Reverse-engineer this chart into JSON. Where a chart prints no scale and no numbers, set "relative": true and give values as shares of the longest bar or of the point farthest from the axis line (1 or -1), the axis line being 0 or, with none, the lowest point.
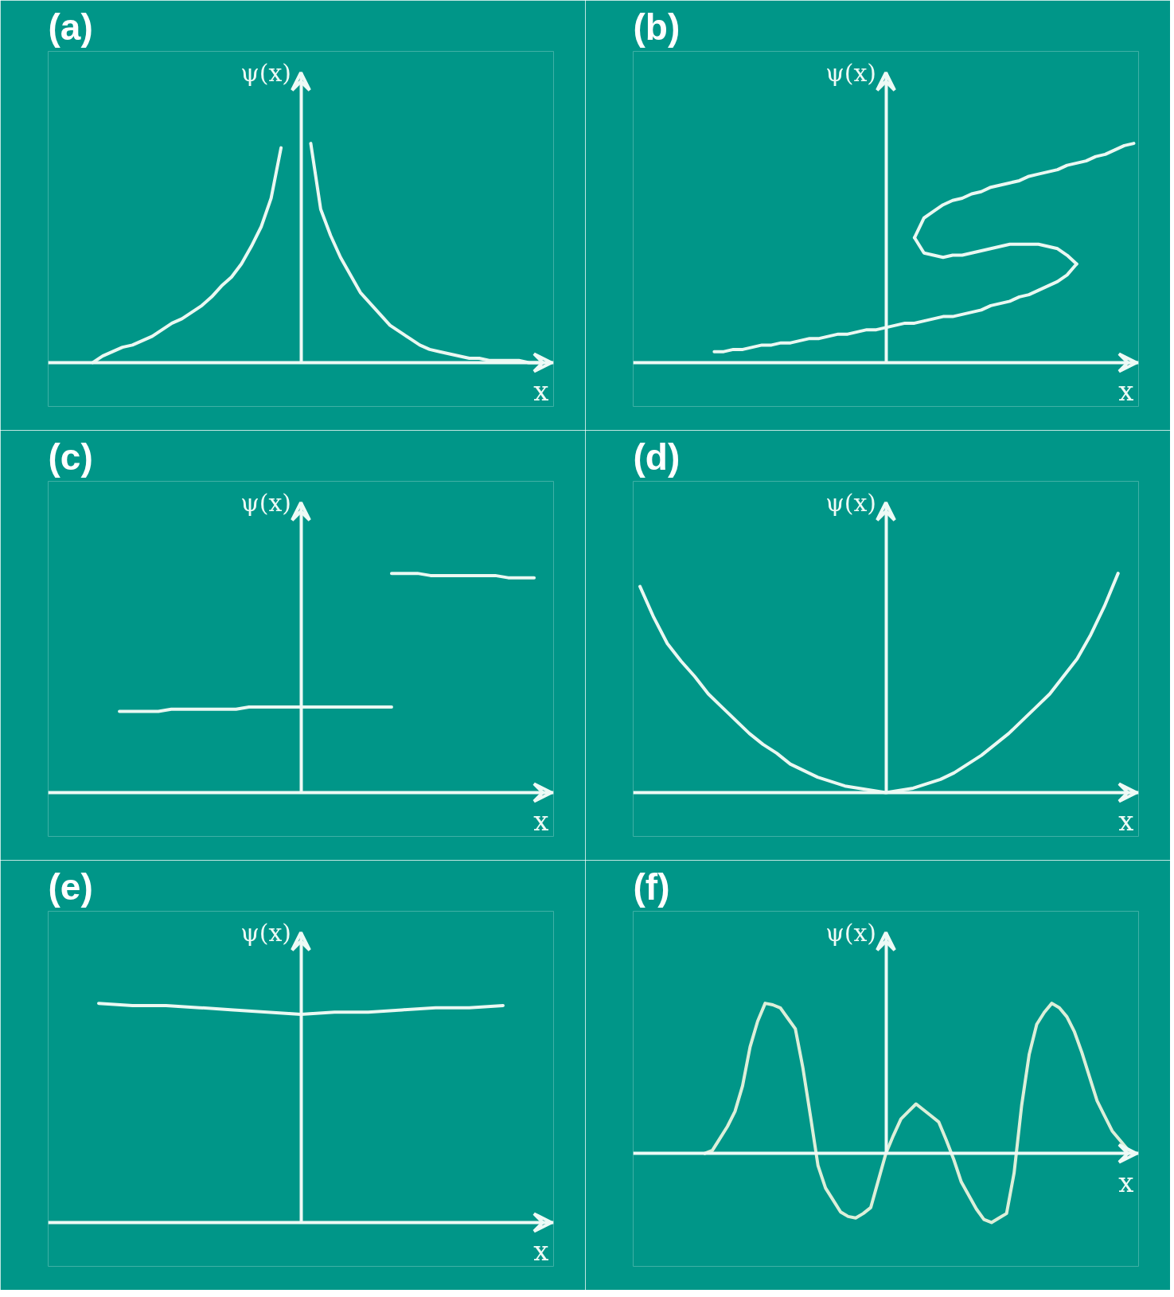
{
  "chart_data": [
    {
      "type": "line",
      "title": "(a)",
      "xlabel": "x",
      "ylabel": "ψ(x)",
      "relative": true,
      "categories": [
        null,
        null,
        null,
        null,
        null,
        null,
        null,
        null,
        null,
        null,
        null,
        null,
        null,
        null,
        null,
        null,
        null,
        null,
        null,
        null,
        null,
        null,
        null,
        null,
        null,
        null,
        null,
        null,
        null,
        null,
        null,
        null,
        null,
        null,
        null,
        null,
        null,
        null,
        null,
        null,
        null,
        null,
        null,
        null,
        null,
        null,
        null,
        null,
        null,
        null,
        null
      ],
      "series": [
        {
          "color": "#eaf8f2",
          "values": [
            null,
            null,
            null,
            null,
            0,
            0.03,
            0.05,
            0.07,
            0.08,
            0.1,
            0.12,
            0.15,
            0.18,
            0.2,
            0.23,
            0.26,
            0.3,
            0.35,
            0.39,
            0.45,
            0.53,
            0.62,
            0.75,
            0.98,
            null,
            null,
            null,
            null,
            null,
            null,
            null,
            null,
            null,
            null,
            null,
            null,
            null,
            null,
            null,
            null,
            null,
            null,
            null,
            null,
            null,
            null,
            null,
            null,
            null,
            null,
            null
          ]
        },
        {
          "color": "#eaf8f2",
          "values": [
            null,
            null,
            null,
            null,
            null,
            null,
            null,
            null,
            null,
            null,
            null,
            null,
            null,
            null,
            null,
            null,
            null,
            null,
            null,
            null,
            null,
            null,
            null,
            null,
            null,
            null,
            1.0,
            0.7,
            0.58,
            0.48,
            0.4,
            0.32,
            0.27,
            0.22,
            0.17,
            0.14,
            0.11,
            0.08,
            0.06,
            0.05,
            0.04,
            0.03,
            0.02,
            0.02,
            0.01,
            0.01,
            0.01,
            0.01,
            0,
            0,
            null
          ]
        }
      ]
    },
    {
      "type": "line",
      "title": "(b)",
      "xlabel": "x",
      "ylabel": "ψ(x)",
      "relative": true,
      "categories": [
        null,
        null,
        null,
        null,
        null,
        null,
        null,
        null,
        null,
        null,
        null,
        null,
        null,
        null,
        null,
        null,
        null,
        null,
        null,
        null,
        null,
        null,
        null,
        null,
        null,
        null,
        null,
        null,
        null,
        null,
        null,
        null,
        null,
        null,
        null,
        null,
        null,
        null,
        null,
        null,
        null,
        null,
        null,
        null,
        null,
        null,
        null,
        null,
        null,
        null,
        null,
        null,
        null
      ],
      "series": [
        {
          "color": "#eaf8f2",
          "values": [
            null,
            null,
            null,
            null,
            null,
            null,
            null,
            null,
            0.05,
            0.05,
            0.06,
            0.06,
            0.07,
            0.08,
            0.08,
            0.09,
            0.09,
            0.1,
            0.11,
            0.11,
            0.12,
            0.13,
            0.13,
            0.14,
            0.15,
            0.15,
            0.16,
            0.17,
            0.18,
            0.18,
            0.19,
            0.2,
            0.21,
            0.21,
            0.22,
            0.23,
            0.24,
            0.26,
            0.27,
            0.28,
            0.3,
            0.31,
            0.33,
            0.35,
            0.37,
            0.4,
            0.45,
            null,
            null,
            null,
            null,
            null,
            null
          ]
        },
        {
          "color": "#eaf8f2",
          "values": [
            null,
            null,
            null,
            null,
            null,
            null,
            null,
            null,
            null,
            null,
            null,
            null,
            null,
            null,
            null,
            null,
            null,
            null,
            null,
            null,
            null,
            null,
            null,
            null,
            null,
            null,
            null,
            null,
            null,
            0.57,
            0.5,
            0.49,
            0.48,
            0.49,
            0.49,
            0.5,
            0.51,
            0.52,
            0.53,
            0.54,
            0.54,
            0.54,
            0.54,
            0.53,
            0.52,
            0.49,
            0.45,
            null,
            null,
            null,
            null,
            null,
            null
          ]
        },
        {
          "color": "#eaf8f2",
          "values": [
            null,
            null,
            null,
            null,
            null,
            null,
            null,
            null,
            null,
            null,
            null,
            null,
            null,
            null,
            null,
            null,
            null,
            null,
            null,
            null,
            null,
            null,
            null,
            null,
            null,
            null,
            null,
            null,
            null,
            0.57,
            0.66,
            0.69,
            0.72,
            0.74,
            0.75,
            0.77,
            0.78,
            0.8,
            0.81,
            0.82,
            0.83,
            0.85,
            0.86,
            0.87,
            0.88,
            0.9,
            0.91,
            0.92,
            0.94,
            0.95,
            0.97,
            0.99,
            1.0
          ]
        }
      ]
    },
    {
      "type": "line",
      "title": "(c)",
      "xlabel": "x",
      "ylabel": "ψ(x)",
      "relative": true,
      "categories": [
        null,
        null,
        null,
        null,
        null,
        null,
        null,
        null,
        null,
        null,
        null,
        null,
        null,
        null,
        null,
        null,
        null,
        null,
        null,
        null,
        null,
        null,
        null,
        null,
        null,
        null,
        null,
        null,
        null,
        null,
        null,
        null,
        null,
        null,
        null,
        null,
        null,
        null,
        null
      ],
      "series": [
        {
          "color": "#eaf8f2",
          "values": [
            null,
            null,
            null,
            null,
            null,
            0.37,
            0.37,
            0.37,
            0.37,
            0.38,
            0.38,
            0.38,
            0.38,
            0.38,
            0.38,
            0.39,
            0.39,
            0.39,
            0.39,
            0.39,
            0.39,
            0.39,
            0.39,
            0.39,
            0.39,
            0.39,
            0.39,
            null,
            null,
            null,
            null,
            null,
            null,
            null,
            null,
            null,
            null,
            null,
            null
          ]
        },
        {
          "color": "#eaf8f2",
          "values": [
            null,
            null,
            null,
            null,
            null,
            null,
            null,
            null,
            null,
            null,
            null,
            null,
            null,
            null,
            null,
            null,
            null,
            null,
            null,
            null,
            null,
            null,
            null,
            null,
            null,
            null,
            1.0,
            1.0,
            1.0,
            0.99,
            0.99,
            0.99,
            0.99,
            0.99,
            0.99,
            0.98,
            0.98,
            0.98,
            null
          ]
        }
      ]
    },
    {
      "type": "line",
      "title": "(d)",
      "xlabel": "x",
      "ylabel": "ψ(x)",
      "relative": true,
      "categories": [
        null,
        null,
        null,
        null,
        null,
        null,
        null,
        null,
        null,
        null,
        null,
        null,
        null,
        null,
        null,
        null,
        null,
        null,
        null,
        null,
        null,
        null,
        null,
        null,
        null,
        null,
        null,
        null,
        null,
        null,
        null,
        null,
        null,
        null,
        null,
        null,
        null
      ],
      "series": [
        {
          "color": "#eaf8f2",
          "values": [
            0.94,
            0.8,
            0.68,
            0.6,
            0.53,
            0.45,
            0.39,
            0.33,
            0.27,
            0.22,
            0.18,
            0.13,
            0.1,
            0.07,
            0.05,
            0.03,
            0.02,
            0.01,
            0,
            0.01,
            0.02,
            0.04,
            0.06,
            0.09,
            0.13,
            0.17,
            0.22,
            0.27,
            0.33,
            0.39,
            0.45,
            0.53,
            0.61,
            0.72,
            0.85,
            1.0,
            null
          ]
        }
      ]
    },
    {
      "type": "line",
      "title": "(e)",
      "xlabel": "x",
      "ylabel": "ψ(x)",
      "relative": true,
      "categories": [
        null,
        null,
        null,
        null,
        null,
        null,
        null,
        null,
        null,
        null,
        null,
        null,
        null,
        null,
        null
      ],
      "series": [
        {
          "color": "#eaf8f2",
          "values": [
            null,
            1.0,
            0.99,
            0.99,
            0.98,
            0.97,
            0.96,
            0.95,
            0.96,
            0.96,
            0.97,
            0.98,
            0.98,
            0.99,
            null
          ]
        }
      ]
    },
    {
      "type": "line",
      "title": "(f)",
      "xlabel": "x",
      "ylabel": "ψ(x)",
      "relative": true,
      "categories": [
        null,
        null,
        null,
        null,
        null,
        null,
        null,
        null,
        null,
        null,
        null,
        null,
        null,
        null,
        null,
        null,
        null,
        null,
        null,
        null,
        null,
        null,
        null,
        null,
        null,
        null,
        null,
        null,
        null,
        null,
        null,
        null,
        null,
        null,
        null,
        null,
        null,
        null,
        null,
        null,
        null,
        null,
        null,
        null,
        null,
        null,
        null,
        null,
        null,
        null,
        null,
        null,
        null,
        null,
        null,
        null,
        null,
        null,
        null,
        null,
        null,
        null,
        null,
        null,
        null,
        null,
        null
      ],
      "series": [
        {
          "color": "#dcefd9",
          "values": [
            null,
            null,
            null,
            null,
            null,
            null,
            null,
            null,
            null,
            0,
            0.02,
            0.1,
            0.18,
            0.28,
            0.45,
            0.71,
            0.88,
            1.0,
            0.99,
            0.97,
            0.9,
            0.83,
            0.57,
            0.25,
            -0.08,
            -0.23,
            -0.31,
            -0.39,
            -0.42,
            -0.43,
            -0.4,
            -0.36,
            -0.18,
            0,
            0.12,
            0.23,
            0.28,
            0.33,
            0.29,
            0.25,
            0.21,
            0.09,
            -0.04,
            -0.19,
            -0.28,
            -0.37,
            -0.44,
            -0.46,
            -0.43,
            -0.4,
            -0.13,
            0.32,
            0.66,
            0.86,
            0.94,
            1.0,
            0.97,
            0.91,
            0.81,
            0.67,
            0.51,
            0.35,
            0.25,
            0.15,
            0.09,
            0.03,
            0
          ]
        }
      ]
    }
  ]
}
